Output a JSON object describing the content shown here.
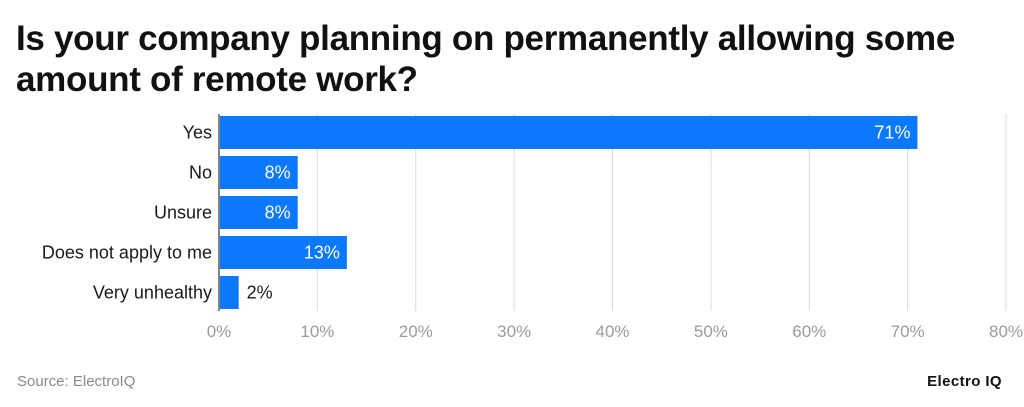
{
  "title": "Is your company planning on permanently allowing some amount of remote work?",
  "source": "Source: ElectroIQ",
  "logo": "Electro IQ",
  "colors": {
    "bar": "#0a78ff",
    "grid": "#d9d9d9",
    "axis_text": "#9b9b9b",
    "label_text": "#1a1a1a"
  },
  "chart_data": {
    "type": "bar",
    "orientation": "horizontal",
    "categories": [
      "Yes",
      "No",
      "Unsure",
      "Does not apply to me",
      "Very unhealthy"
    ],
    "values": [
      71,
      8,
      8,
      13,
      2
    ],
    "data_labels": [
      "71%",
      "8%",
      "8%",
      "13%",
      "2%"
    ],
    "xlim": [
      0,
      80
    ],
    "xticks": [
      0,
      10,
      20,
      30,
      40,
      50,
      60,
      70,
      80
    ],
    "xtick_labels": [
      "0%",
      "10%",
      "20%",
      "30%",
      "40%",
      "50%",
      "60%",
      "70%",
      "80%"
    ],
    "grid": true,
    "legend": "none"
  }
}
